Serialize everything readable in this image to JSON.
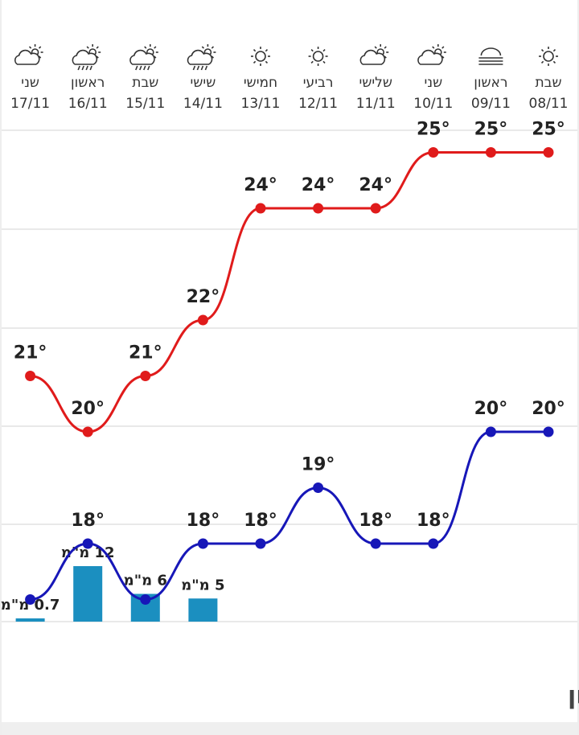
{
  "chart_data": {
    "type": "line",
    "categories": [
      "08/11",
      "09/11",
      "10/11",
      "11/11",
      "12/11",
      "13/11",
      "14/11",
      "15/11",
      "16/11",
      "17/11"
    ],
    "day_names": [
      "שבת",
      "ראשון",
      "שני",
      "שלישי",
      "רביעי",
      "חמישי",
      "שישי",
      "שבת",
      "ראשון",
      "שני"
    ],
    "icons": [
      "sun",
      "fog",
      "partly-cloudy",
      "partly-cloudy",
      "sun",
      "sun",
      "rain",
      "rain",
      "rain",
      "partly-cloudy"
    ],
    "ylim": [
      16,
      26
    ],
    "y2lim": [
      0,
      20
    ],
    "series": [
      {
        "color": "#e01b1b",
        "values": [
          25,
          25,
          25,
          24,
          24,
          24,
          22,
          21,
          20,
          21
        ],
        "value_labels": [
          "25°",
          "25°",
          "25°",
          "24°",
          "24°",
          "24°",
          "22°",
          "21°",
          "20°",
          "21°"
        ]
      },
      {
        "color": "#1717b8",
        "values": [
          20,
          20,
          18,
          18,
          19,
          18,
          18,
          17,
          18,
          17
        ],
        "value_labels": [
          "20°",
          "20°",
          "18°",
          "18°",
          "19°",
          "18°",
          "18°",
          null,
          "18°",
          null
        ]
      },
      {
        "type": "bar",
        "axis": "y2",
        "color": "#1b8fc0",
        "values": [
          null,
          null,
          null,
          null,
          null,
          null,
          5,
          6,
          12,
          0.7
        ],
        "value_labels": [
          null,
          null,
          null,
          null,
          null,
          null,
          "5 מ\"מ",
          "6 מ\"מ",
          "12 מ\"מ",
          "0.7 מ\"מ"
        ]
      }
    ]
  },
  "footer": {
    "title": "מזג אוויר שעתי אשקלון"
  }
}
